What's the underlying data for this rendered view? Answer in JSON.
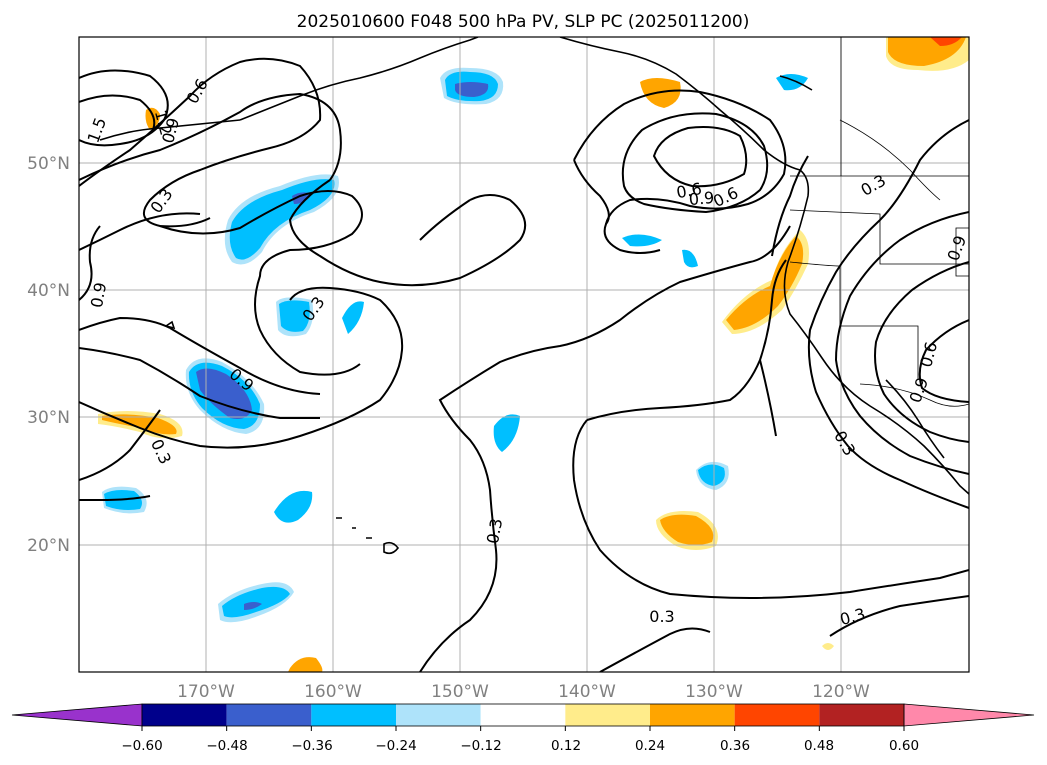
{
  "title": "2025010600 F048 500 hPa PV, SLP PC (2025011200)",
  "map": {
    "lat_labels": [
      "50°N",
      "40°N",
      "30°N",
      "20°N"
    ],
    "lon_labels": [
      "170°W",
      "160°W",
      "150°W",
      "140°W",
      "130°W",
      "120°W"
    ],
    "contour_labels": [
      "1.5",
      "1.2",
      "0.9",
      "0.6",
      "0.3",
      "0.9",
      "0.3",
      "0.9",
      "0.6",
      "0.3",
      "0.6",
      "0.9",
      "0.3",
      "0.3",
      "0.3",
      "0.3",
      "0.6",
      "0.9",
      "0.3",
      "0.9"
    ]
  },
  "colorbar": {
    "ticks": [
      "−0.60",
      "−0.48",
      "−0.36",
      "−0.24",
      "−0.12",
      "0.12",
      "0.24",
      "0.36",
      "0.48",
      "0.60"
    ],
    "colors": [
      "#9932cc",
      "#00008b",
      "#3a5fcd",
      "#00bfff",
      "#aee3fa",
      "#ffffff",
      "#ffec8b",
      "#ffa500",
      "#ff4500",
      "#b22222",
      "#ff88aa"
    ]
  },
  "palette": {
    "strong_negative": "#3a5fcd",
    "negative": "#00bfff",
    "weak_negative": "#aee3fa",
    "weak_positive": "#ffec8b",
    "positive": "#ffa500",
    "strong_positive": "#ff4500"
  }
}
